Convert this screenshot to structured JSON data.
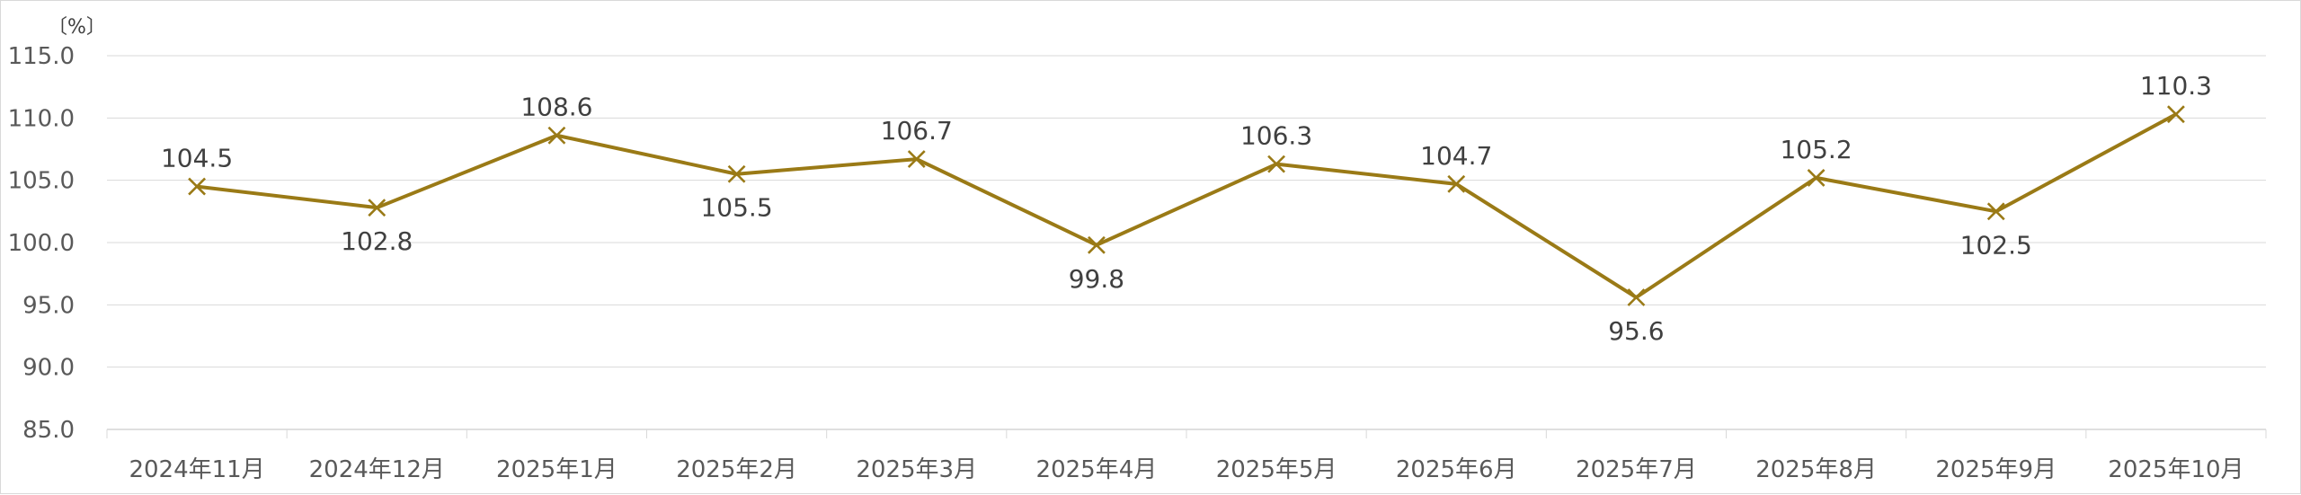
{
  "chart_data": {
    "type": "line",
    "unit_label": "〔%〕",
    "categories": [
      "2024年11月",
      "2024年12月",
      "2025年1月",
      "2025年2月",
      "2025年3月",
      "2025年4月",
      "2025年5月",
      "2025年6月",
      "2025年7月",
      "2025年8月",
      "2025年9月",
      "2025年10月"
    ],
    "series": [
      {
        "values": [
          104.5,
          102.8,
          108.6,
          105.5,
          106.7,
          99.8,
          106.3,
          104.7,
          95.6,
          105.2,
          102.5,
          110.3
        ],
        "color": "#9a7a16",
        "marker": "x"
      }
    ],
    "ylim": [
      85.0,
      115.0
    ],
    "yticks": [
      "85.0",
      "90.0",
      "95.0",
      "100.0",
      "105.0",
      "110.0",
      "115.0"
    ],
    "data_labels": [
      "104.5",
      "102.8",
      "108.6",
      "105.5",
      "106.7",
      "99.8",
      "106.3",
      "104.7",
      "95.6",
      "105.2",
      "102.5",
      "110.3"
    ],
    "grid": true,
    "legend": "none"
  }
}
